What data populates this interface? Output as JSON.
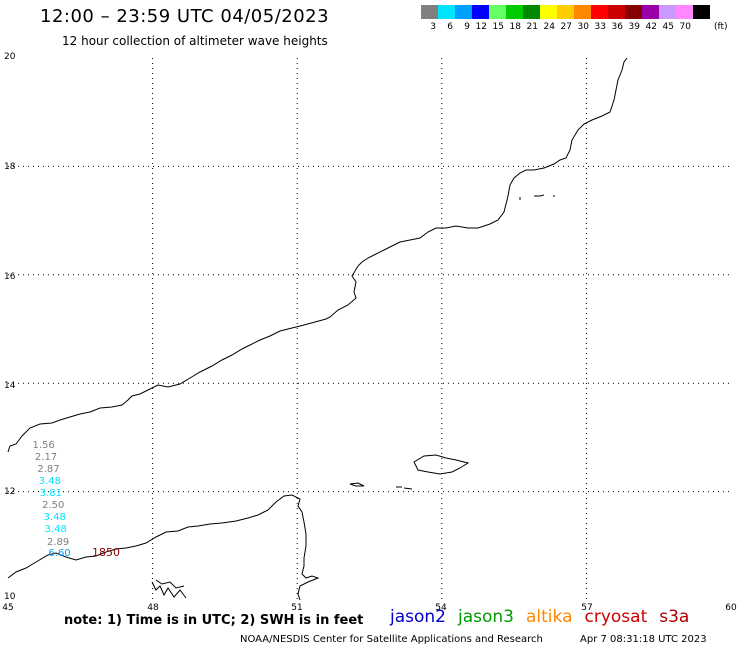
{
  "header": {
    "title": "12:00 – 23:59 UTC 04/05/2023",
    "subtitle": "12 hour collection of altimeter wave heights"
  },
  "colorbar": {
    "unit": "(ft)",
    "bins": [
      {
        "label": "3",
        "color": "#808080"
      },
      {
        "label": "6",
        "color": "#00e5ff"
      },
      {
        "label": "9",
        "color": "#00a0ff"
      },
      {
        "label": "12",
        "color": "#0000ff"
      },
      {
        "label": "15",
        "color": "#66ff66"
      },
      {
        "label": "18",
        "color": "#00cc00"
      },
      {
        "label": "21",
        "color": "#008800"
      },
      {
        "label": "24",
        "color": "#ffff00"
      },
      {
        "label": "27",
        "color": "#ffcc00"
      },
      {
        "label": "30",
        "color": "#ff8800"
      },
      {
        "label": "33",
        "color": "#ff0000"
      },
      {
        "label": "36",
        "color": "#cc0000"
      },
      {
        "label": "39",
        "color": "#880000"
      },
      {
        "label": "42",
        "color": "#9900aa"
      },
      {
        "label": "45",
        "color": "#cc99ff"
      },
      {
        "label": "70",
        "color": "#ff88ff"
      },
      {
        "label": "",
        "color": "#000000"
      }
    ]
  },
  "map": {
    "lon_ticks": [
      "45",
      "48",
      "51",
      "54",
      "57",
      "60"
    ],
    "lat_ticks": [
      "20",
      "18",
      "16",
      "14",
      "12",
      "10"
    ],
    "lon_range": [
      45,
      60
    ],
    "lat_range": [
      10,
      20
    ]
  },
  "observations": {
    "pass_time": "1850",
    "pass_time_color": "#880000",
    "wave_heights": [
      {
        "value": "1.56",
        "color": "#808080",
        "lon": 45.55,
        "lat": 12.85
      },
      {
        "value": "2.17",
        "color": "#808080",
        "lon": 45.6,
        "lat": 12.62
      },
      {
        "value": "2.87",
        "color": "#808080",
        "lon": 45.65,
        "lat": 12.4
      },
      {
        "value": "3.48",
        "color": "#00e5ff",
        "lon": 45.68,
        "lat": 12.18
      },
      {
        "value": "3.81",
        "color": "#00e5ff",
        "lon": 45.7,
        "lat": 11.96
      },
      {
        "value": "2.50",
        "color": "#808080",
        "lon": 45.75,
        "lat": 11.73
      },
      {
        "value": "3.48",
        "color": "#00e5ff",
        "lon": 45.78,
        "lat": 11.51
      },
      {
        "value": "3.48",
        "color": "#00e5ff",
        "lon": 45.8,
        "lat": 11.29
      },
      {
        "value": "2.89",
        "color": "#808080",
        "lon": 45.85,
        "lat": 11.06
      },
      {
        "value": "6.60",
        "color": "#00a0ff",
        "lon": 45.88,
        "lat": 10.84
      }
    ]
  },
  "footer": {
    "note": "note:  1) Time is in UTC;  2) SWH is in feet",
    "satellites": [
      {
        "name": "jason2",
        "color": "#0000cc"
      },
      {
        "name": "jason3",
        "color": "#009900"
      },
      {
        "name": "altika",
        "color": "#ff8800"
      },
      {
        "name": "cryosat",
        "color": "#cc0000"
      },
      {
        "name": "s3a",
        "color": "#aa0000"
      }
    ],
    "credit": "NOAA/NESDIS Center for Satellite Applications and Research",
    "timestamp": "Apr  7 08:31:18 UTC 2023"
  }
}
